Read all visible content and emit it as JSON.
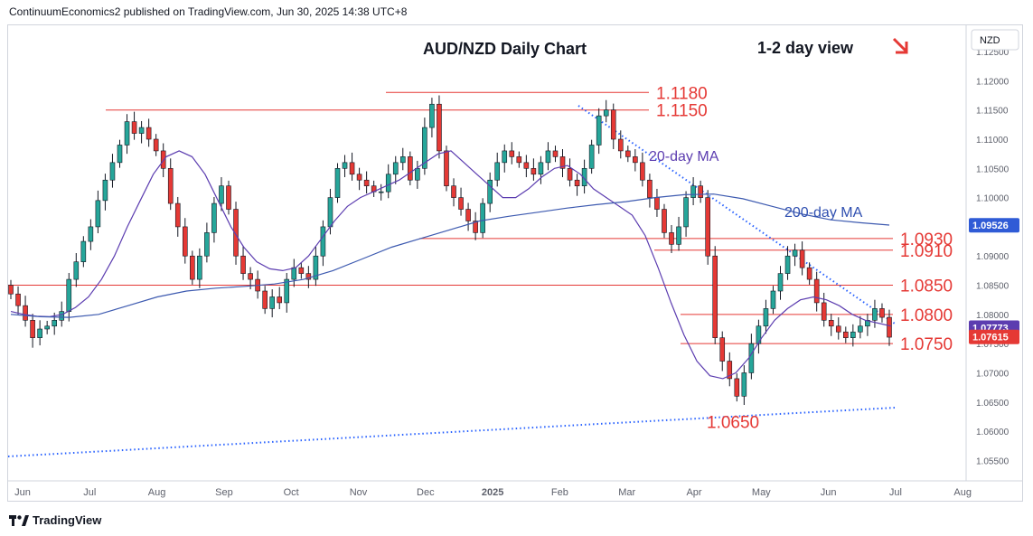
{
  "header": {
    "publisher": "ContinuumEconomics2 published on TradingView.com, Jun 30, 2025 14:38 UTC+8"
  },
  "footer": {
    "brand": "TradingView"
  },
  "colors": {
    "up": "#26a69a",
    "down": "#e53935",
    "level": "#e53935",
    "ma": "#5c3db0",
    "ma200": "#3d5ab0",
    "trend": "#2962ff"
  },
  "chart_data": {
    "type": "candlestick",
    "title": "AUD/NZD Daily Chart",
    "subtitle": "1-2 day view",
    "currency": "NZD",
    "y_ticks": [
      "1.12500",
      "1.12000",
      "1.11500",
      "1.11000",
      "1.10500",
      "1.10000",
      "1.09500",
      "1.09000",
      "1.08500",
      "1.08000",
      "1.07500",
      "1.07000",
      "1.06500",
      "1.06000",
      "1.05500"
    ],
    "ylim": [
      1.0515,
      1.1295
    ],
    "x_ticks": [
      "Jun",
      "Jul",
      "Aug",
      "Sep",
      "Oct",
      "Nov",
      "Dec",
      "2025",
      "Feb",
      "Mar",
      "Apr",
      "May",
      "Jun",
      "Jul",
      "Aug"
    ],
    "levels": [
      {
        "label": "1.1180",
        "value": 1.118
      },
      {
        "label": "1.1150",
        "value": 1.115
      },
      {
        "label": "1.0930",
        "value": 1.093
      },
      {
        "label": "1.0910",
        "value": 1.091
      },
      {
        "label": "1.0850",
        "value": 1.085
      },
      {
        "label": "1.0800",
        "value": 1.08
      },
      {
        "label": "1.0750",
        "value": 1.075
      },
      {
        "label": "1.0650",
        "value": 1.0655
      }
    ],
    "annotations": [
      "20-day MA",
      "200-day MA"
    ],
    "price_tags": [
      {
        "label": "1.09526",
        "value": 1.09526,
        "color": "#2f5bd6"
      },
      {
        "label": "1.07773",
        "value": 1.07773,
        "color": "#5c3db0"
      },
      {
        "label": "1.07615",
        "value": 1.07615,
        "color": "#e53935"
      }
    ],
    "closes": [
      1.0835,
      1.0815,
      1.079,
      1.076,
      1.0775,
      1.078,
      1.079,
      1.0805,
      1.086,
      1.089,
      1.0925,
      1.095,
      1.0995,
      1.103,
      1.106,
      1.109,
      1.113,
      1.111,
      1.112,
      1.11,
      1.108,
      1.105,
      1.099,
      1.095,
      1.09,
      1.086,
      1.09,
      1.094,
      1.099,
      1.102,
      1.098,
      1.09,
      1.087,
      1.086,
      1.084,
      1.081,
      1.083,
      1.082,
      1.086,
      1.088,
      1.087,
      1.086,
      1.09,
      1.095,
      1.1,
      1.105,
      1.106,
      1.104,
      1.103,
      1.102,
      1.101,
      1.101,
      1.104,
      1.106,
      1.107,
      1.103,
      1.105,
      1.112,
      1.116,
      1.108,
      1.102,
      1.1,
      1.098,
      1.096,
      1.094,
      1.099,
      1.103,
      1.106,
      1.108,
      1.107,
      1.106,
      1.105,
      1.104,
      1.106,
      1.108,
      1.107,
      1.105,
      1.103,
      1.102,
      1.105,
      1.109,
      1.114,
      1.115,
      1.11,
      1.108,
      1.107,
      1.106,
      1.103,
      1.1,
      1.098,
      1.094,
      1.092,
      1.095,
      1.1,
      1.102,
      1.1,
      1.09,
      1.076,
      1.072,
      1.069,
      1.066,
      1.07,
      1.075,
      1.078,
      1.081,
      1.084,
      1.087,
      1.09,
      1.091,
      1.088,
      1.086,
      1.082,
      1.079,
      1.078,
      1.077,
      1.076,
      1.077,
      1.078,
      1.079,
      1.081,
      1.0795,
      1.0761
    ],
    "ma20": [
      1.0805,
      1.08,
      1.0797,
      1.0796,
      1.08,
      1.0812,
      1.083,
      1.086,
      1.09,
      1.095,
      1.0995,
      1.104,
      1.107,
      1.108,
      1.107,
      1.104,
      1.0995,
      1.095,
      1.0915,
      1.089,
      1.0878,
      1.0875,
      1.088,
      1.09,
      1.093,
      1.096,
      1.0985,
      1.1,
      1.101,
      1.102,
      1.103,
      1.1045,
      1.106,
      1.1075,
      1.108,
      1.106,
      1.104,
      1.102,
      1.1,
      1.1,
      1.1015,
      1.1035,
      1.105,
      1.1055,
      1.104,
      1.1015,
      1.1,
      1.0985,
      1.097,
      1.0935,
      1.088,
      1.082,
      1.0765,
      1.072,
      1.0695,
      1.069,
      1.07,
      1.0725,
      1.076,
      1.079,
      1.081,
      1.0825,
      1.083,
      1.0825,
      1.0815,
      1.08,
      1.079,
      1.0785,
      1.078
    ],
    "ma200": [
      1.08,
      1.0796,
      1.0795,
      1.08,
      1.0815,
      1.083,
      1.084,
      1.0845,
      1.0848,
      1.0852,
      1.086,
      1.0875,
      1.0895,
      1.0915,
      1.093,
      1.0945,
      1.096,
      1.0968,
      1.0975,
      1.0982,
      1.0988,
      1.0993,
      1.1,
      1.1005,
      1.1006,
      1.0998,
      1.0985,
      1.0972,
      1.0962,
      1.0957,
      1.0953
    ]
  }
}
